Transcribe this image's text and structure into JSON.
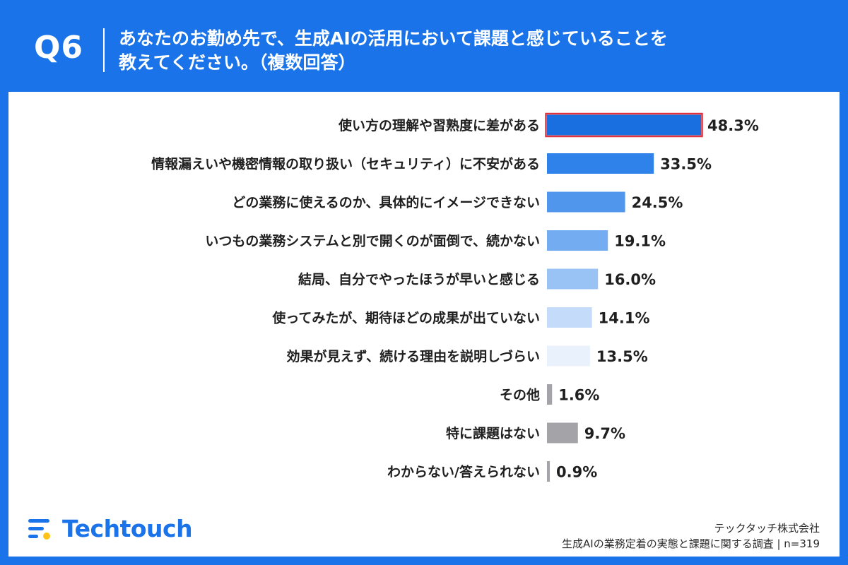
{
  "header": {
    "question_number": "Q6",
    "question_line1": "あなたのお勤め先で、生成AIの活用において課題と感じていることを",
    "question_line2": "教えてください。（複数回答）"
  },
  "footer": {
    "company": "テックタッチ株式会社",
    "survey": "生成AIの業務定着の実態と課題に関する調査 | n=319",
    "logo_text": "Techtouch"
  },
  "colors": {
    "frame": "#1a73e8",
    "highlight_outline": "#e0323c",
    "other_bars": "#a4a3a8"
  },
  "chart_data": {
    "type": "bar",
    "orientation": "horizontal",
    "unit": "%",
    "xlim": [
      0,
      50
    ],
    "grid": false,
    "categories": [
      "使い方の理解や習熟度に差がある",
      "情報漏えいや機密情報の取り扱い（セキュリティ）に不安がある",
      "どの業務に使えるのか、具体的にイメージできない",
      "いつもの業務システムと別で開くのが面倒で、続かない",
      "結局、自分でやったほうが早いと感じる",
      "使ってみたが、期待ほどの成果が出ていない",
      "効果が見えず、続ける理由を説明しづらい",
      "その他",
      "特に課題はない",
      "わからない/答えられない"
    ],
    "values": [
      48.3,
      33.5,
      24.5,
      19.1,
      16.0,
      14.1,
      13.5,
      1.6,
      9.7,
      0.9
    ],
    "value_labels": [
      "48.3%",
      "33.5%",
      "24.5%",
      "19.1%",
      "16.0%",
      "14.1%",
      "13.5%",
      "1.6%",
      "9.7%",
      "0.9%"
    ],
    "bar_colors": [
      "#1a6fe0",
      "#2f82ea",
      "#4f96ec",
      "#73acf0",
      "#99c3f5",
      "#c4dbf9",
      "#e8f1fc",
      "#a4a3a8",
      "#a4a3a8",
      "#a4a3a8"
    ],
    "highlighted_index": 0
  }
}
